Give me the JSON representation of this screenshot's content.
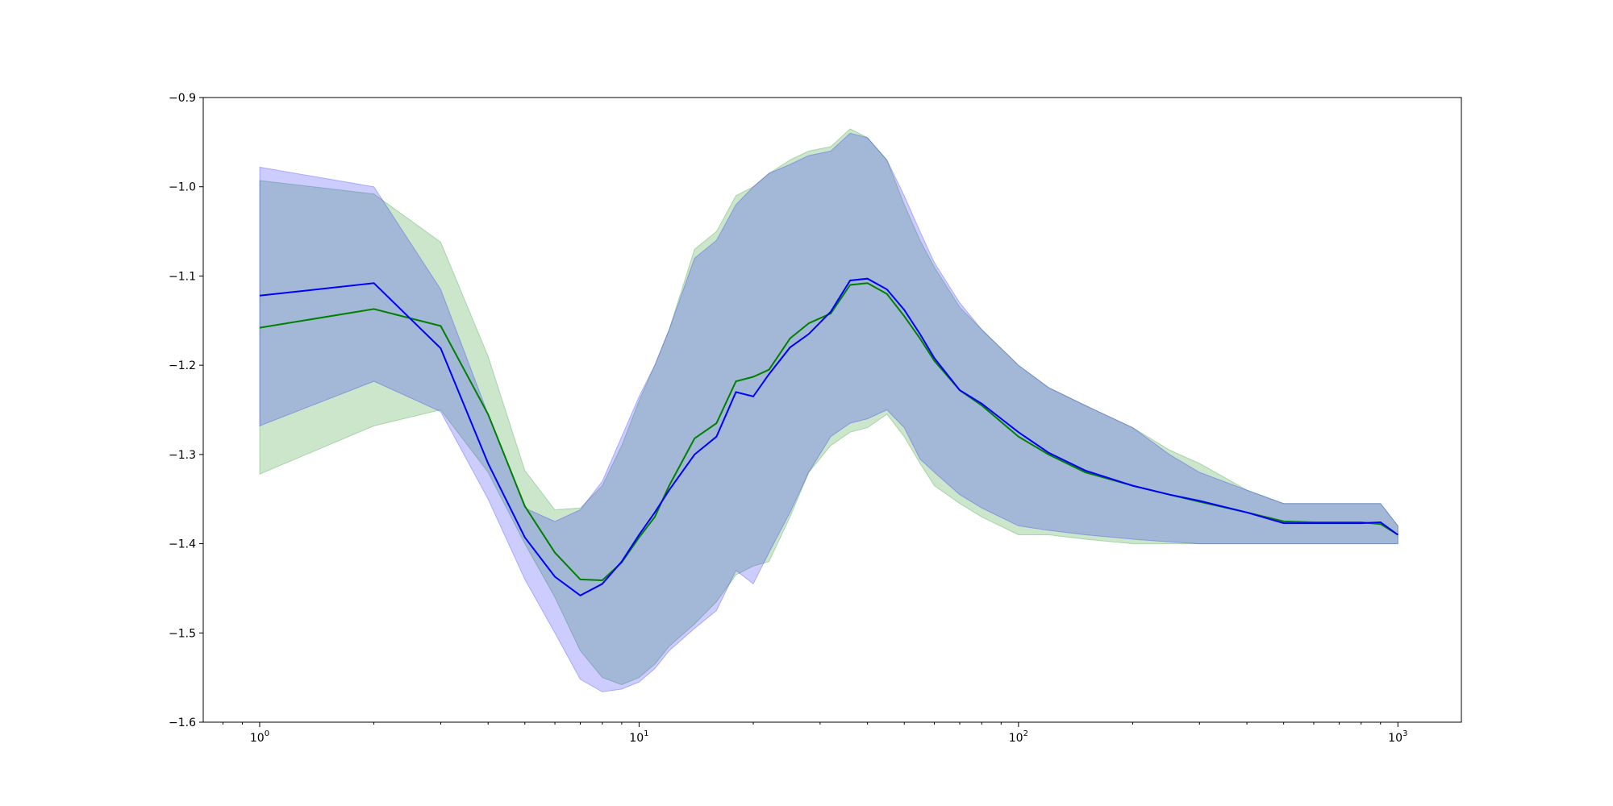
{
  "chart_data": {
    "type": "line",
    "title": "",
    "xlabel": "",
    "ylabel": "",
    "x_scale": "log",
    "xlim": [
      0.71,
      1470
    ],
    "ylim": [
      -1.6,
      -0.9
    ],
    "grid": false,
    "x_ticks": [
      {
        "value": 1,
        "base": "10",
        "exp": "0"
      },
      {
        "value": 10,
        "base": "10",
        "exp": "1"
      },
      {
        "value": 100,
        "base": "10",
        "exp": "2"
      },
      {
        "value": 1000,
        "base": "10",
        "exp": "3"
      }
    ],
    "y_ticks": [
      {
        "value": -0.9,
        "label": "−0.9"
      },
      {
        "value": -1.0,
        "label": "−1.0"
      },
      {
        "value": -1.1,
        "label": "−1.1"
      },
      {
        "value": -1.2,
        "label": "−1.2"
      },
      {
        "value": -1.3,
        "label": "−1.3"
      },
      {
        "value": -1.4,
        "label": "−1.4"
      },
      {
        "value": -1.5,
        "label": "−1.5"
      },
      {
        "value": -1.6,
        "label": "−1.6"
      }
    ],
    "series": [
      {
        "color": "#008000",
        "band_color": "#008000",
        "x": [
          1,
          2,
          3,
          4,
          5,
          6,
          7,
          8,
          9,
          10,
          11,
          12,
          14,
          16,
          18,
          20,
          22,
          25,
          28,
          32,
          36,
          40,
          45,
          50,
          55,
          60,
          70,
          80,
          100,
          120,
          150,
          200,
          250,
          300,
          400,
          500,
          600,
          700,
          800,
          900,
          1000
        ],
        "mean": [
          -1.158,
          -1.137,
          -1.156,
          -1.255,
          -1.358,
          -1.41,
          -1.44,
          -1.441,
          -1.421,
          -1.393,
          -1.37,
          -1.335,
          -1.282,
          -1.265,
          -1.218,
          -1.213,
          -1.205,
          -1.17,
          -1.153,
          -1.142,
          -1.11,
          -1.108,
          -1.12,
          -1.145,
          -1.17,
          -1.195,
          -1.228,
          -1.245,
          -1.28,
          -1.3,
          -1.32,
          -1.335,
          -1.345,
          -1.353,
          -1.365,
          -1.375,
          -1.376,
          -1.376,
          -1.376,
          -1.378,
          -1.39
        ],
        "upper": [
          -0.993,
          -1.008,
          -1.062,
          -1.19,
          -1.318,
          -1.362,
          -1.36,
          -1.335,
          -1.29,
          -1.24,
          -1.2,
          -1.16,
          -1.07,
          -1.05,
          -1.01,
          -1.0,
          -0.985,
          -0.97,
          -0.96,
          -0.955,
          -0.935,
          -0.945,
          -0.97,
          -1.02,
          -1.06,
          -1.09,
          -1.135,
          -1.16,
          -1.2,
          -1.225,
          -1.245,
          -1.27,
          -1.295,
          -1.31,
          -1.34,
          -1.355,
          -1.355,
          -1.355,
          -1.355,
          -1.355,
          -1.38
        ],
        "lower": [
          -1.322,
          -1.268,
          -1.25,
          -1.32,
          -1.4,
          -1.46,
          -1.52,
          -1.55,
          -1.558,
          -1.55,
          -1.535,
          -1.515,
          -1.49,
          -1.465,
          -1.435,
          -1.425,
          -1.42,
          -1.37,
          -1.32,
          -1.29,
          -1.275,
          -1.27,
          -1.255,
          -1.28,
          -1.31,
          -1.335,
          -1.355,
          -1.37,
          -1.39,
          -1.39,
          -1.395,
          -1.4,
          -1.4,
          -1.4,
          -1.4,
          -1.4,
          -1.4,
          -1.4,
          -1.4,
          -1.4,
          -1.4
        ]
      },
      {
        "color": "#0000ff",
        "band_color": "#0000ff",
        "x": [
          1,
          2,
          3,
          4,
          5,
          6,
          7,
          8,
          9,
          10,
          11,
          12,
          14,
          16,
          18,
          20,
          22,
          25,
          28,
          32,
          36,
          40,
          45,
          50,
          55,
          60,
          70,
          80,
          100,
          120,
          150,
          200,
          250,
          300,
          400,
          500,
          600,
          700,
          800,
          900,
          1000
        ],
        "mean": [
          -1.122,
          -1.108,
          -1.181,
          -1.31,
          -1.393,
          -1.437,
          -1.458,
          -1.445,
          -1.42,
          -1.39,
          -1.365,
          -1.34,
          -1.3,
          -1.28,
          -1.23,
          -1.235,
          -1.21,
          -1.18,
          -1.165,
          -1.14,
          -1.105,
          -1.103,
          -1.115,
          -1.138,
          -1.165,
          -1.192,
          -1.228,
          -1.243,
          -1.275,
          -1.298,
          -1.318,
          -1.335,
          -1.345,
          -1.352,
          -1.365,
          -1.377,
          -1.377,
          -1.377,
          -1.377,
          -1.376,
          -1.39
        ],
        "upper": [
          -0.978,
          -1.0,
          -1.115,
          -1.255,
          -1.36,
          -1.375,
          -1.362,
          -1.33,
          -1.28,
          -1.235,
          -1.2,
          -1.16,
          -1.08,
          -1.06,
          -1.02,
          -1.0,
          -0.985,
          -0.975,
          -0.965,
          -0.96,
          -0.94,
          -0.945,
          -0.97,
          -1.01,
          -1.05,
          -1.085,
          -1.13,
          -1.16,
          -1.2,
          -1.225,
          -1.245,
          -1.27,
          -1.3,
          -1.32,
          -1.34,
          -1.355,
          -1.355,
          -1.355,
          -1.355,
          -1.355,
          -1.38
        ],
        "lower": [
          -1.268,
          -1.218,
          -1.252,
          -1.35,
          -1.44,
          -1.5,
          -1.552,
          -1.566,
          -1.563,
          -1.555,
          -1.54,
          -1.52,
          -1.495,
          -1.475,
          -1.43,
          -1.445,
          -1.41,
          -1.365,
          -1.32,
          -1.28,
          -1.265,
          -1.26,
          -1.25,
          -1.27,
          -1.305,
          -1.32,
          -1.345,
          -1.36,
          -1.38,
          -1.385,
          -1.39,
          -1.395,
          -1.398,
          -1.4,
          -1.4,
          -1.4,
          -1.4,
          -1.4,
          -1.4,
          -1.4,
          -1.4
        ]
      }
    ]
  }
}
